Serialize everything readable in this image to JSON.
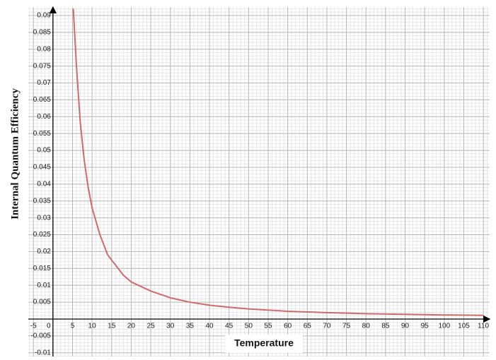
{
  "chart_data": {
    "type": "line",
    "x_label": "Temperature",
    "y_label": "Internal Quantum  Efficiency",
    "x": [
      5.2,
      6,
      7,
      8,
      9,
      10,
      12,
      14,
      16,
      18,
      20,
      25,
      30,
      35,
      40,
      45,
      50,
      60,
      70,
      80,
      90,
      100,
      110
    ],
    "series": [
      {
        "color": "#d06a6a",
        "values": [
          0.092,
          0.075,
          0.058,
          0.047,
          0.039,
          0.033,
          0.025,
          0.019,
          0.016,
          0.013,
          0.011,
          0.0083,
          0.0063,
          0.005,
          0.0041,
          0.0035,
          0.003,
          0.0023,
          0.0019,
          0.0016,
          0.0014,
          0.0012,
          0.0011
        ]
      }
    ],
    "xlim": [
      -6.3,
      111.6
    ],
    "ylim": [
      -0.0111,
      0.0925
    ],
    "xticks": [
      -5,
      0,
      5,
      10,
      15,
      20,
      25,
      30,
      35,
      40,
      45,
      50,
      55,
      60,
      65,
      70,
      75,
      80,
      85,
      90,
      95,
      100,
      105,
      110
    ],
    "yticks": [
      -0.01,
      -0.005,
      0,
      0.005,
      0.01,
      0.015,
      0.02,
      0.025,
      0.03,
      0.035,
      0.04,
      0.045,
      0.05,
      0.055,
      0.06,
      0.065,
      0.07,
      0.075,
      0.08,
      0.085,
      0.09
    ],
    "grid": true
  }
}
